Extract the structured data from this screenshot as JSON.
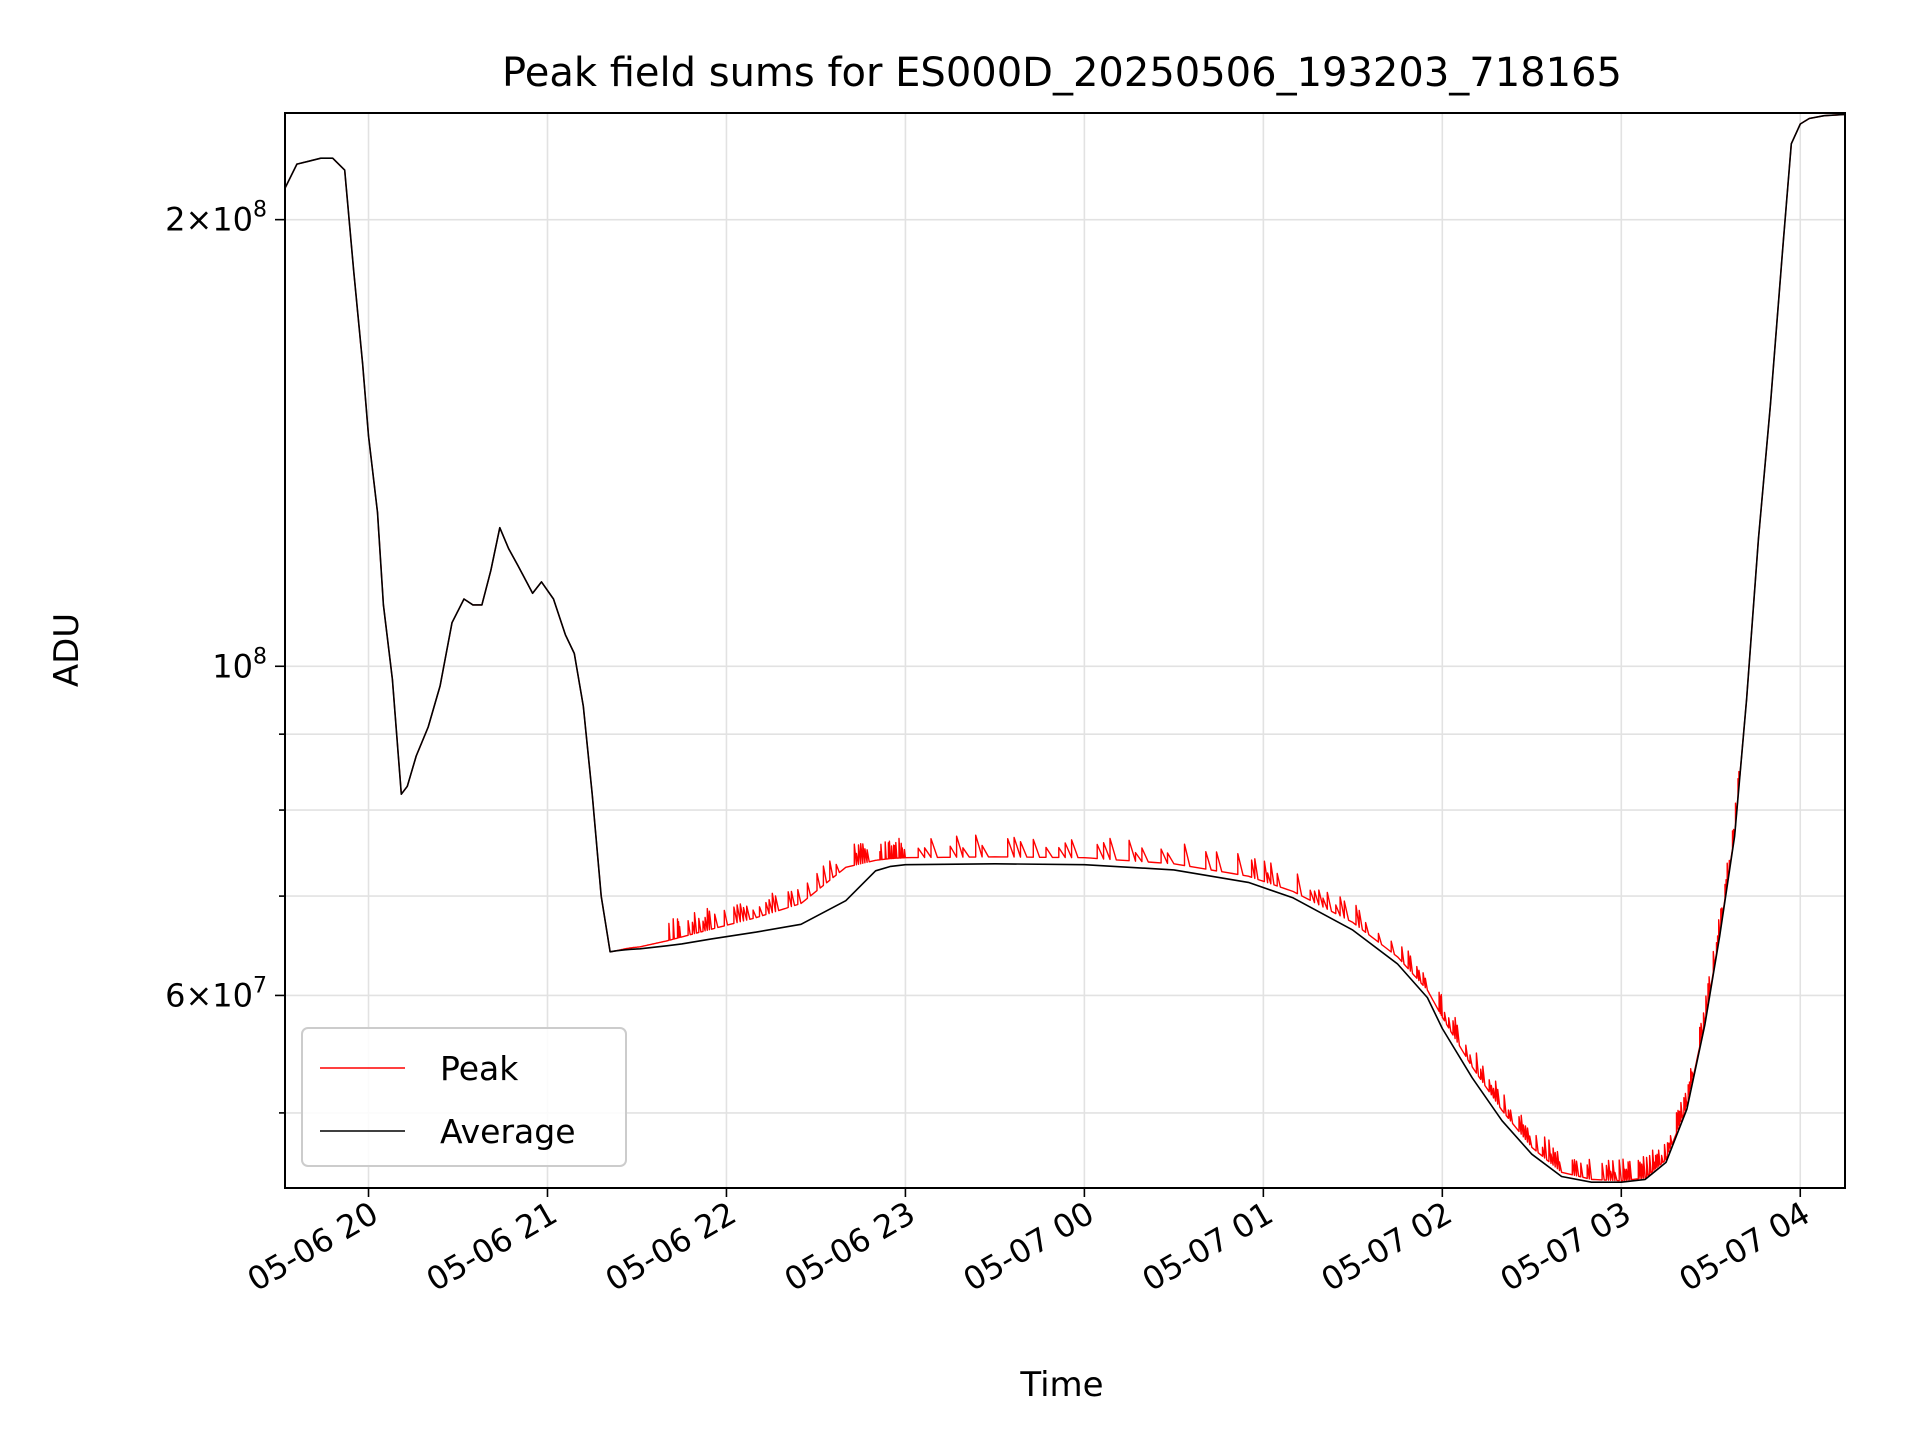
{
  "chart_data": {
    "type": "line",
    "title": "Peak field sums for ES000D_20250506_193203_718165",
    "xlabel": "Time",
    "ylabel": "ADU",
    "y_scale": "log",
    "ylim": [
      44500000,
      236000000
    ],
    "xlim": [
      "2025-05-06 19:32",
      "2025-05-07 04:15"
    ],
    "grid": true,
    "legend_position": "lower-left",
    "x_ticks": [
      {
        "value": "2025-05-06 20:00",
        "label": "05-06 20"
      },
      {
        "value": "2025-05-06 21:00",
        "label": "05-06 21"
      },
      {
        "value": "2025-05-06 22:00",
        "label": "05-06 22"
      },
      {
        "value": "2025-05-06 23:00",
        "label": "05-06 23"
      },
      {
        "value": "2025-05-07 00:00",
        "label": "05-07 00"
      },
      {
        "value": "2025-05-07 01:00",
        "label": "05-07 01"
      },
      {
        "value": "2025-05-07 02:00",
        "label": "05-07 02"
      },
      {
        "value": "2025-05-07 03:00",
        "label": "05-07 03"
      },
      {
        "value": "2025-05-07 04:00",
        "label": "05-07 04"
      }
    ],
    "y_major_ticks": [
      {
        "value": 60000000,
        "mantissa": "6",
        "exponent": "7"
      },
      {
        "value": 100000000,
        "mantissa": "",
        "exponent": "8"
      },
      {
        "value": 200000000,
        "mantissa": "2",
        "exponent": "8"
      }
    ],
    "y_minor_ticks": [
      50000000,
      70000000,
      80000000,
      90000000
    ],
    "series": [
      {
        "name": "Peak",
        "color": "#ff0000",
        "spiky": true,
        "x": [
          "2025-05-06 19:32",
          "2025-05-06 19:36",
          "2025-05-06 19:40",
          "2025-05-06 19:44",
          "2025-05-06 19:48",
          "2025-05-06 19:52",
          "2025-05-06 19:55",
          "2025-05-06 19:58",
          "2025-05-06 20:00",
          "2025-05-06 20:03",
          "2025-05-06 20:05",
          "2025-05-06 20:08",
          "2025-05-06 20:11",
          "2025-05-06 20:13",
          "2025-05-06 20:16",
          "2025-05-06 20:20",
          "2025-05-06 20:24",
          "2025-05-06 20:28",
          "2025-05-06 20:32",
          "2025-05-06 20:35",
          "2025-05-06 20:38",
          "2025-05-06 20:41",
          "2025-05-06 20:44",
          "2025-05-06 20:47",
          "2025-05-06 20:50",
          "2025-05-06 20:52",
          "2025-05-06 20:55",
          "2025-05-06 20:58",
          "2025-05-06 21:02",
          "2025-05-06 21:06",
          "2025-05-06 21:09",
          "2025-05-06 21:12",
          "2025-05-06 21:15",
          "2025-05-06 21:18",
          "2025-05-06 21:21",
          "2025-05-06 21:23",
          "2025-05-06 21:26",
          "2025-05-06 21:28",
          "2025-05-06 21:31",
          "2025-05-06 21:34",
          "2025-05-06 21:37",
          "2025-05-06 21:40",
          "2025-05-06 21:45",
          "2025-05-06 21:55",
          "2025-05-06 22:10",
          "2025-05-06 22:25",
          "2025-05-06 22:40",
          "2025-05-06 22:50",
          "2025-05-06 22:55",
          "2025-05-06 23:00",
          "2025-05-06 23:30",
          "2025-05-07 00:00",
          "2025-05-07 00:30",
          "2025-05-07 00:55",
          "2025-05-07 01:10",
          "2025-05-07 01:30",
          "2025-05-07 01:45",
          "2025-05-07 01:55",
          "2025-05-07 02:00",
          "2025-05-07 02:10",
          "2025-05-07 02:20",
          "2025-05-07 02:30",
          "2025-05-07 02:40",
          "2025-05-07 02:50",
          "2025-05-07 03:00",
          "2025-05-07 03:08",
          "2025-05-07 03:15",
          "2025-05-07 03:22",
          "2025-05-07 03:28",
          "2025-05-07 03:33",
          "2025-05-07 03:38",
          "2025-05-07 03:42",
          "2025-05-07 03:46",
          "2025-05-07 03:50",
          "2025-05-07 03:54",
          "2025-05-07 03:57",
          "2025-05-07 04:00",
          "2025-05-07 04:03",
          "2025-05-07 04:08",
          "2025-05-07 04:15"
        ],
        "y": [
          210000000,
          218000000,
          219000000,
          220000000,
          220000000,
          216000000,
          185000000,
          160000000,
          143000000,
          127000000,
          110000000,
          98000000,
          82000000,
          83000000,
          87000000,
          91000000,
          97000000,
          107000000,
          111000000,
          110000000,
          110000000,
          116000000,
          124000000,
          120000000,
          117000000,
          115000000,
          112000000,
          114000000,
          111000000,
          105000000,
          102000000,
          94000000,
          82000000,
          70000000,
          64200000,
          64300000,
          64500000,
          64600000,
          64700000,
          64900000,
          65100000,
          65300000,
          65700000,
          66500000,
          67700000,
          69200000,
          73200000,
          74000000,
          74200000,
          74300000,
          74400000,
          74300000,
          73600000,
          72200000,
          70500000,
          67200000,
          63700000,
          60500000,
          58000000,
          53700000,
          50200000,
          47400000,
          45600000,
          45100000,
          45000000,
          45200000,
          46500000,
          50500000,
          57500000,
          66000000,
          77000000,
          95000000,
          122000000,
          150000000,
          190000000,
          225000000,
          232000000,
          234000000,
          235000000,
          235500000
        ]
      },
      {
        "name": "Average",
        "color": "#000000",
        "spiky": false,
        "x": [
          "2025-05-06 19:32",
          "2025-05-06 19:36",
          "2025-05-06 19:40",
          "2025-05-06 19:44",
          "2025-05-06 19:48",
          "2025-05-06 19:52",
          "2025-05-06 19:55",
          "2025-05-06 19:58",
          "2025-05-06 20:00",
          "2025-05-06 20:03",
          "2025-05-06 20:05",
          "2025-05-06 20:08",
          "2025-05-06 20:11",
          "2025-05-06 20:13",
          "2025-05-06 20:16",
          "2025-05-06 20:20",
          "2025-05-06 20:24",
          "2025-05-06 20:28",
          "2025-05-06 20:32",
          "2025-05-06 20:35",
          "2025-05-06 20:38",
          "2025-05-06 20:41",
          "2025-05-06 20:44",
          "2025-05-06 20:47",
          "2025-05-06 20:50",
          "2025-05-06 20:52",
          "2025-05-06 20:55",
          "2025-05-06 20:58",
          "2025-05-06 21:02",
          "2025-05-06 21:06",
          "2025-05-06 21:09",
          "2025-05-06 21:12",
          "2025-05-06 21:15",
          "2025-05-06 21:18",
          "2025-05-06 21:21",
          "2025-05-06 21:23",
          "2025-05-06 21:26",
          "2025-05-06 21:28",
          "2025-05-06 21:31",
          "2025-05-06 21:34",
          "2025-05-06 21:37",
          "2025-05-06 21:40",
          "2025-05-06 21:45",
          "2025-05-06 21:55",
          "2025-05-06 22:10",
          "2025-05-06 22:25",
          "2025-05-06 22:40",
          "2025-05-06 22:50",
          "2025-05-06 22:55",
          "2025-05-06 23:00",
          "2025-05-06 23:30",
          "2025-05-07 00:00",
          "2025-05-07 00:30",
          "2025-05-07 00:55",
          "2025-05-07 01:10",
          "2025-05-07 01:30",
          "2025-05-07 01:45",
          "2025-05-07 01:55",
          "2025-05-07 02:00",
          "2025-05-07 02:10",
          "2025-05-07 02:20",
          "2025-05-07 02:30",
          "2025-05-07 02:40",
          "2025-05-07 02:50",
          "2025-05-07 03:00",
          "2025-05-07 03:08",
          "2025-05-07 03:15",
          "2025-05-07 03:22",
          "2025-05-07 03:28",
          "2025-05-07 03:33",
          "2025-05-07 03:38",
          "2025-05-07 03:42",
          "2025-05-07 03:46",
          "2025-05-07 03:50",
          "2025-05-07 03:54",
          "2025-05-07 03:57",
          "2025-05-07 04:00",
          "2025-05-07 04:03",
          "2025-05-07 04:08",
          "2025-05-07 04:15"
        ],
        "y": [
          210000000,
          218000000,
          219000000,
          220000000,
          220000000,
          216000000,
          185000000,
          160000000,
          143000000,
          127000000,
          110000000,
          98000000,
          82000000,
          83000000,
          87000000,
          91000000,
          97000000,
          107000000,
          111000000,
          110000000,
          110000000,
          116000000,
          124000000,
          120000000,
          117000000,
          115000000,
          112000000,
          114000000,
          111000000,
          105000000,
          102000000,
          94000000,
          82000000,
          70000000,
          64200000,
          64300000,
          64400000,
          64450000,
          64500000,
          64600000,
          64700000,
          64800000,
          65000000,
          65500000,
          66200000,
          67000000,
          69500000,
          72800000,
          73300000,
          73500000,
          73600000,
          73500000,
          72900000,
          71500000,
          69800000,
          66400000,
          63000000,
          59800000,
          57000000,
          52800000,
          49400000,
          46900000,
          45300000,
          44900000,
          44900000,
          45100000,
          46300000,
          50300000,
          57300000,
          65800000,
          76800000,
          95000000,
          122000000,
          150000000,
          190000000,
          225000000,
          232000000,
          234000000,
          235000000,
          235500000
        ]
      }
    ]
  }
}
